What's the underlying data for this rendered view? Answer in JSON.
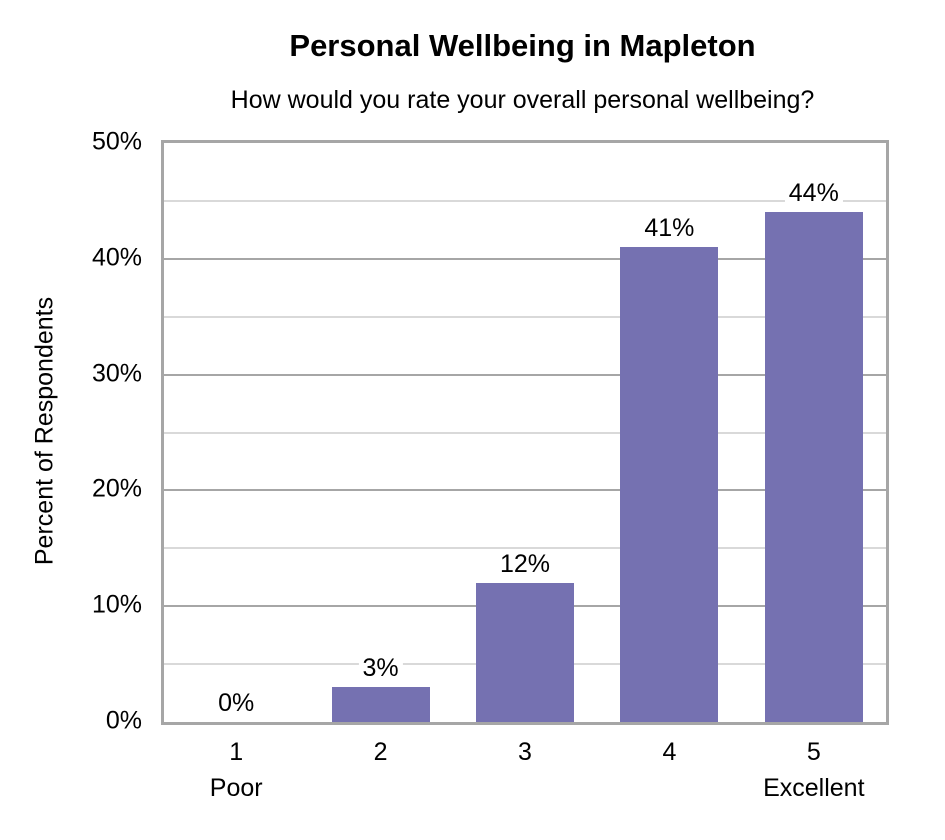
{
  "chart_data": {
    "type": "bar",
    "title": "Personal Wellbeing in Mapleton",
    "subtitle": "How would you rate your overall personal wellbeing?",
    "categories": [
      "1",
      "2",
      "3",
      "4",
      "5"
    ],
    "category_sublabels": [
      "Poor",
      "",
      "",
      "",
      "Excellent"
    ],
    "values": [
      0,
      3,
      12,
      41,
      44
    ],
    "value_labels": [
      "0%",
      "3%",
      "12%",
      "41%",
      "44%"
    ],
    "xlabel": "",
    "ylabel": "Percent of Respondents",
    "ylim": [
      0,
      50
    ],
    "yticks": [
      "0%",
      "10%",
      "20%",
      "30%",
      "40%",
      "50%"
    ],
    "grid": true,
    "legend": "none",
    "bar_color": "#7571b1"
  }
}
